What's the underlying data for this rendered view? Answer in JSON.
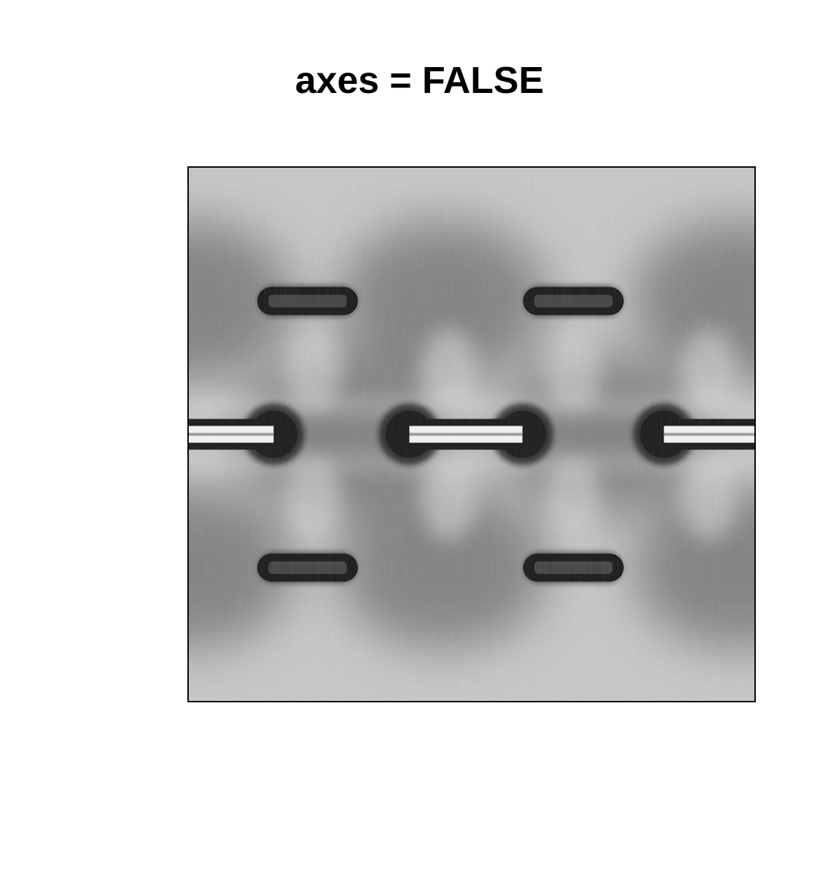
{
  "chart_data": {
    "type": "heatmap",
    "title": "axes = FALSE",
    "xlabel": "",
    "ylabel": "",
    "axes": false,
    "colormap": "grayscale",
    "colors": {
      "background": "#c8c8c8",
      "dark": "#1a1a1a",
      "mid": "#6e6e6e",
      "light": "#f2f2f2",
      "frame": "#000000"
    },
    "features": [
      {
        "name": "bar-top-left",
        "kind": "horizontal-bar",
        "x": 0.21,
        "y": 0.25
      },
      {
        "name": "bar-top-right",
        "kind": "horizontal-bar",
        "x": 0.68,
        "y": 0.25
      },
      {
        "name": "bar-bottom-left",
        "kind": "horizontal-bar",
        "x": 0.21,
        "y": 0.75
      },
      {
        "name": "bar-bottom-right",
        "kind": "horizontal-bar",
        "x": 0.68,
        "y": 0.75
      },
      {
        "name": "node-1",
        "kind": "dark-node",
        "x": 0.15,
        "y": 0.5
      },
      {
        "name": "node-2",
        "kind": "dark-node",
        "x": 0.39,
        "y": 0.5
      },
      {
        "name": "node-3",
        "kind": "dark-node",
        "x": 0.59,
        "y": 0.5
      },
      {
        "name": "node-4",
        "kind": "dark-node",
        "x": 0.84,
        "y": 0.5
      }
    ]
  }
}
